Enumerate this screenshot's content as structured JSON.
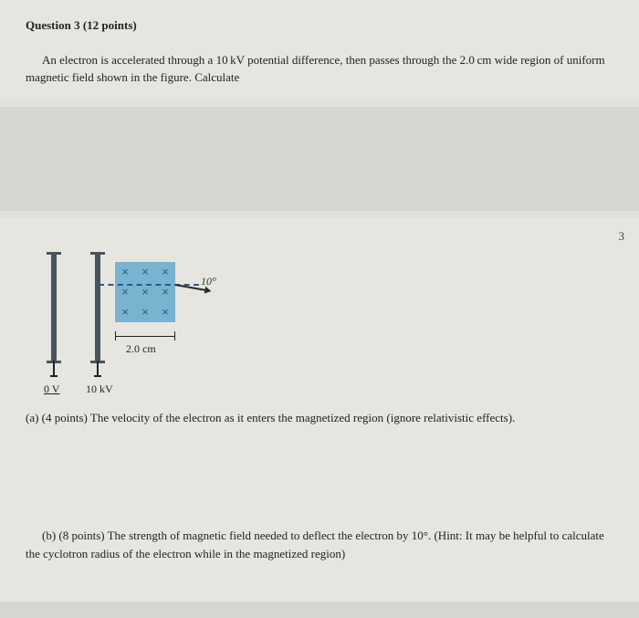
{
  "question": {
    "title": "Question 3 (12 points)",
    "body": "An electron is accelerated through a 10 kV potential difference, then passes through the 2.0 cm wide region of uniform magnetic field shown in the figure. Calculate",
    "page_number": "3"
  },
  "figure": {
    "left_plate_label": "0 V",
    "right_plate_label": "10 kV",
    "region_width_label": "2.0 cm",
    "angle_label": "10°",
    "field_symbol": "×",
    "field_color": "#7ab3cf",
    "plate_color": "#4a5360",
    "dash_color": "#2a5a8a"
  },
  "parts": {
    "a": "(a) (4 points) The velocity of the electron as it enters the magnetized region (ignore relativistic effects).",
    "b": "(b) (8 points) The strength of magnetic field needed to deflect the electron by 10°. (Hint: It may be helpful to calculate the cyclotron radius of the electron while in the magnetized region)"
  },
  "style": {
    "bg_outer": "#d8d6d1",
    "bg_inner": "#e7e5e0",
    "text_color": "#2a2a2a",
    "font_size_body": 13
  }
}
